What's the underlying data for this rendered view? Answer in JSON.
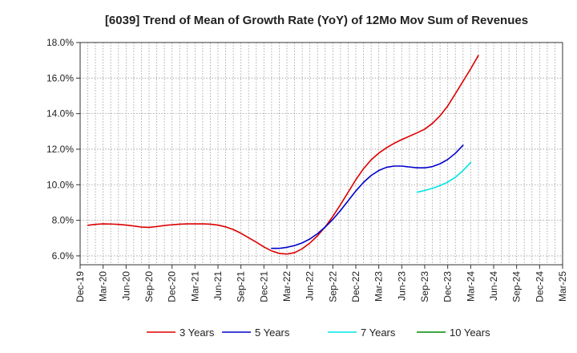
{
  "chart_data": {
    "type": "line",
    "title": "[6039]  Trend of Mean of Growth Rate (YoY) of 12Mo Mov Sum of Revenues",
    "xlabel": "",
    "ylabel": "",
    "ylim": [
      5.5,
      18.0
    ],
    "yticks": [
      6.0,
      8.0,
      10.0,
      12.0,
      14.0,
      16.0,
      18.0
    ],
    "ytick_labels": [
      "6.0%",
      "8.0%",
      "10.0%",
      "12.0%",
      "14.0%",
      "16.0%",
      "18.0%"
    ],
    "x_labels": [
      "Dec-19",
      "Mar-20",
      "Jun-20",
      "Sep-20",
      "Dec-20",
      "Mar-21",
      "Jun-21",
      "Sep-21",
      "Dec-21",
      "Mar-22",
      "Jun-22",
      "Sep-22",
      "Dec-22",
      "Mar-23",
      "Jun-23",
      "Sep-23",
      "Dec-23",
      "Mar-24",
      "Jun-24",
      "Sep-24",
      "Dec-24",
      "Mar-25"
    ],
    "grid": true,
    "legend_position": "bottom",
    "series": [
      {
        "name": "3 Years",
        "color": "#dd0000",
        "start_index": 1,
        "values": [
          7.72,
          7.77,
          7.8,
          7.79,
          7.77,
          7.73,
          7.68,
          7.62,
          7.6,
          7.65,
          7.71,
          7.75,
          7.78,
          7.8,
          7.8,
          7.8,
          7.78,
          7.73,
          7.63,
          7.48,
          7.27,
          7.02,
          6.77,
          6.5,
          6.28,
          6.14,
          6.1,
          6.18,
          6.4,
          6.72,
          7.13,
          7.63,
          8.22,
          8.88,
          9.58,
          10.28,
          10.9,
          11.4,
          11.78,
          12.08,
          12.33,
          12.54,
          12.73,
          12.92,
          13.13,
          13.45,
          13.88,
          14.43,
          15.12,
          15.82,
          16.52,
          17.27
        ]
      },
      {
        "name": "5 Years",
        "color": "#0000cc",
        "start_index": 25,
        "values": [
          6.42,
          6.42,
          6.48,
          6.58,
          6.73,
          6.95,
          7.25,
          7.62,
          8.05,
          8.55,
          9.1,
          9.65,
          10.13,
          10.52,
          10.8,
          10.98,
          11.05,
          11.05,
          11.0,
          10.95,
          10.95,
          11.02,
          11.18,
          11.42,
          11.77,
          12.22
        ]
      },
      {
        "name": "7 Years",
        "color": "#00e5e5",
        "start_index": 44,
        "values": [
          9.58,
          9.68,
          9.8,
          9.95,
          10.15,
          10.42,
          10.8,
          11.25
        ]
      },
      {
        "name": "10 Years",
        "color": "#008800",
        "start_index": 0,
        "values": []
      }
    ]
  }
}
